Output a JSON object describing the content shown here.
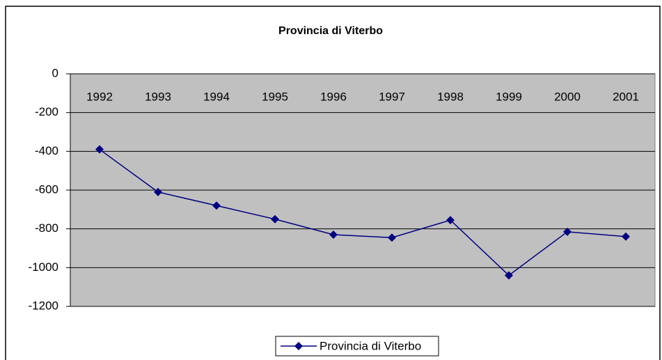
{
  "chart_data": {
    "type": "line",
    "title": "Provincia di Viterbo",
    "categories": [
      "1992",
      "1993",
      "1994",
      "1995",
      "1996",
      "1997",
      "1998",
      "1999",
      "2000",
      "2001"
    ],
    "series": [
      {
        "name": "Provincia di Viterbo",
        "color": "#000080",
        "values": [
          -390,
          -610,
          -680,
          -750,
          -830,
          -845,
          -755,
          -1040,
          -815,
          -840
        ]
      }
    ],
    "ylim": [
      -1200,
      0
    ],
    "yticks": [
      0,
      -200,
      -400,
      -600,
      -800,
      -1000,
      -1200
    ],
    "grid": true,
    "legend": "bottom"
  }
}
